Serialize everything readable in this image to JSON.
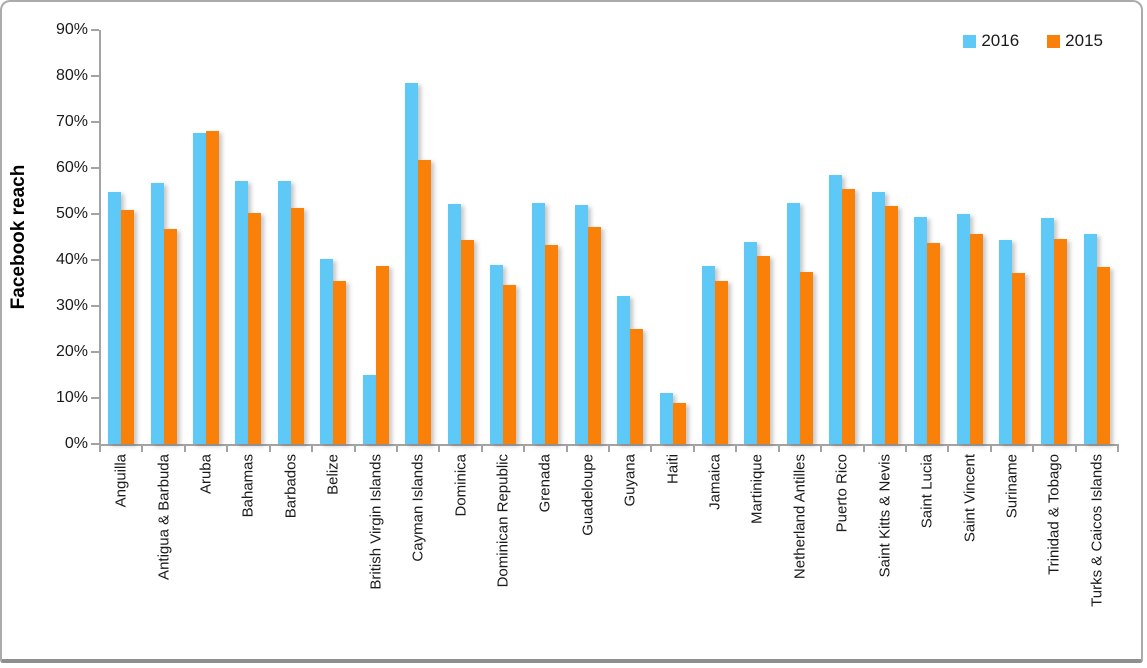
{
  "colors": {
    "background": "#FFFFFF",
    "axis": "#A3A3A3",
    "text": "#1A1A1A",
    "frame_border": "#ABABAB",
    "frame_bottom": "#8F8F8F",
    "series_2016": "#5EC9F7",
    "series_2015": "#F9810A"
  },
  "chart_data": {
    "type": "bar",
    "title": "",
    "xlabel": "",
    "ylabel": "Facebook reach",
    "ylim": [
      0,
      90
    ],
    "ytick_step": 10,
    "ytick_suffix": "%",
    "grid": false,
    "legend_position": "top-right",
    "categories": [
      "Anguilla",
      "Antigua & Barbuda",
      "Aruba",
      "Bahamas",
      "Barbados",
      "Belize",
      "British Virgin Islands",
      "Cayman Islands",
      "Dominica",
      "Dominican Republic",
      "Grenada",
      "Guadeloupe",
      "Guyana",
      "Haiti",
      "Jamaica",
      "Martinique",
      "Netherland Antilles",
      "Puerto Rico",
      "Saint Kitts & Nevis",
      "Saint Lucia",
      "Saint Vincent",
      "Suriname",
      "Trinidad & Tobago",
      "Turks & Caicos Islands"
    ],
    "series": [
      {
        "name": "2016",
        "color": "#5EC9F7",
        "values": [
          54.8,
          56.7,
          67.7,
          57.2,
          57.1,
          40.3,
          14.9,
          78.5,
          52.1,
          39.0,
          52.4,
          51.9,
          32.2,
          11.1,
          38.8,
          44.0,
          52.3,
          58.4,
          54.7,
          49.3,
          49.9,
          44.3,
          49.1,
          45.6
        ]
      },
      {
        "name": "2015",
        "color": "#F9810A",
        "values": [
          50.9,
          46.7,
          68.0,
          50.3,
          51.2,
          35.5,
          38.6,
          61.7,
          44.4,
          34.5,
          43.3,
          47.2,
          24.9,
          9.0,
          35.4,
          40.9,
          37.4,
          55.4,
          51.7,
          43.8,
          45.7,
          37.1,
          44.6,
          38.4
        ]
      }
    ]
  }
}
